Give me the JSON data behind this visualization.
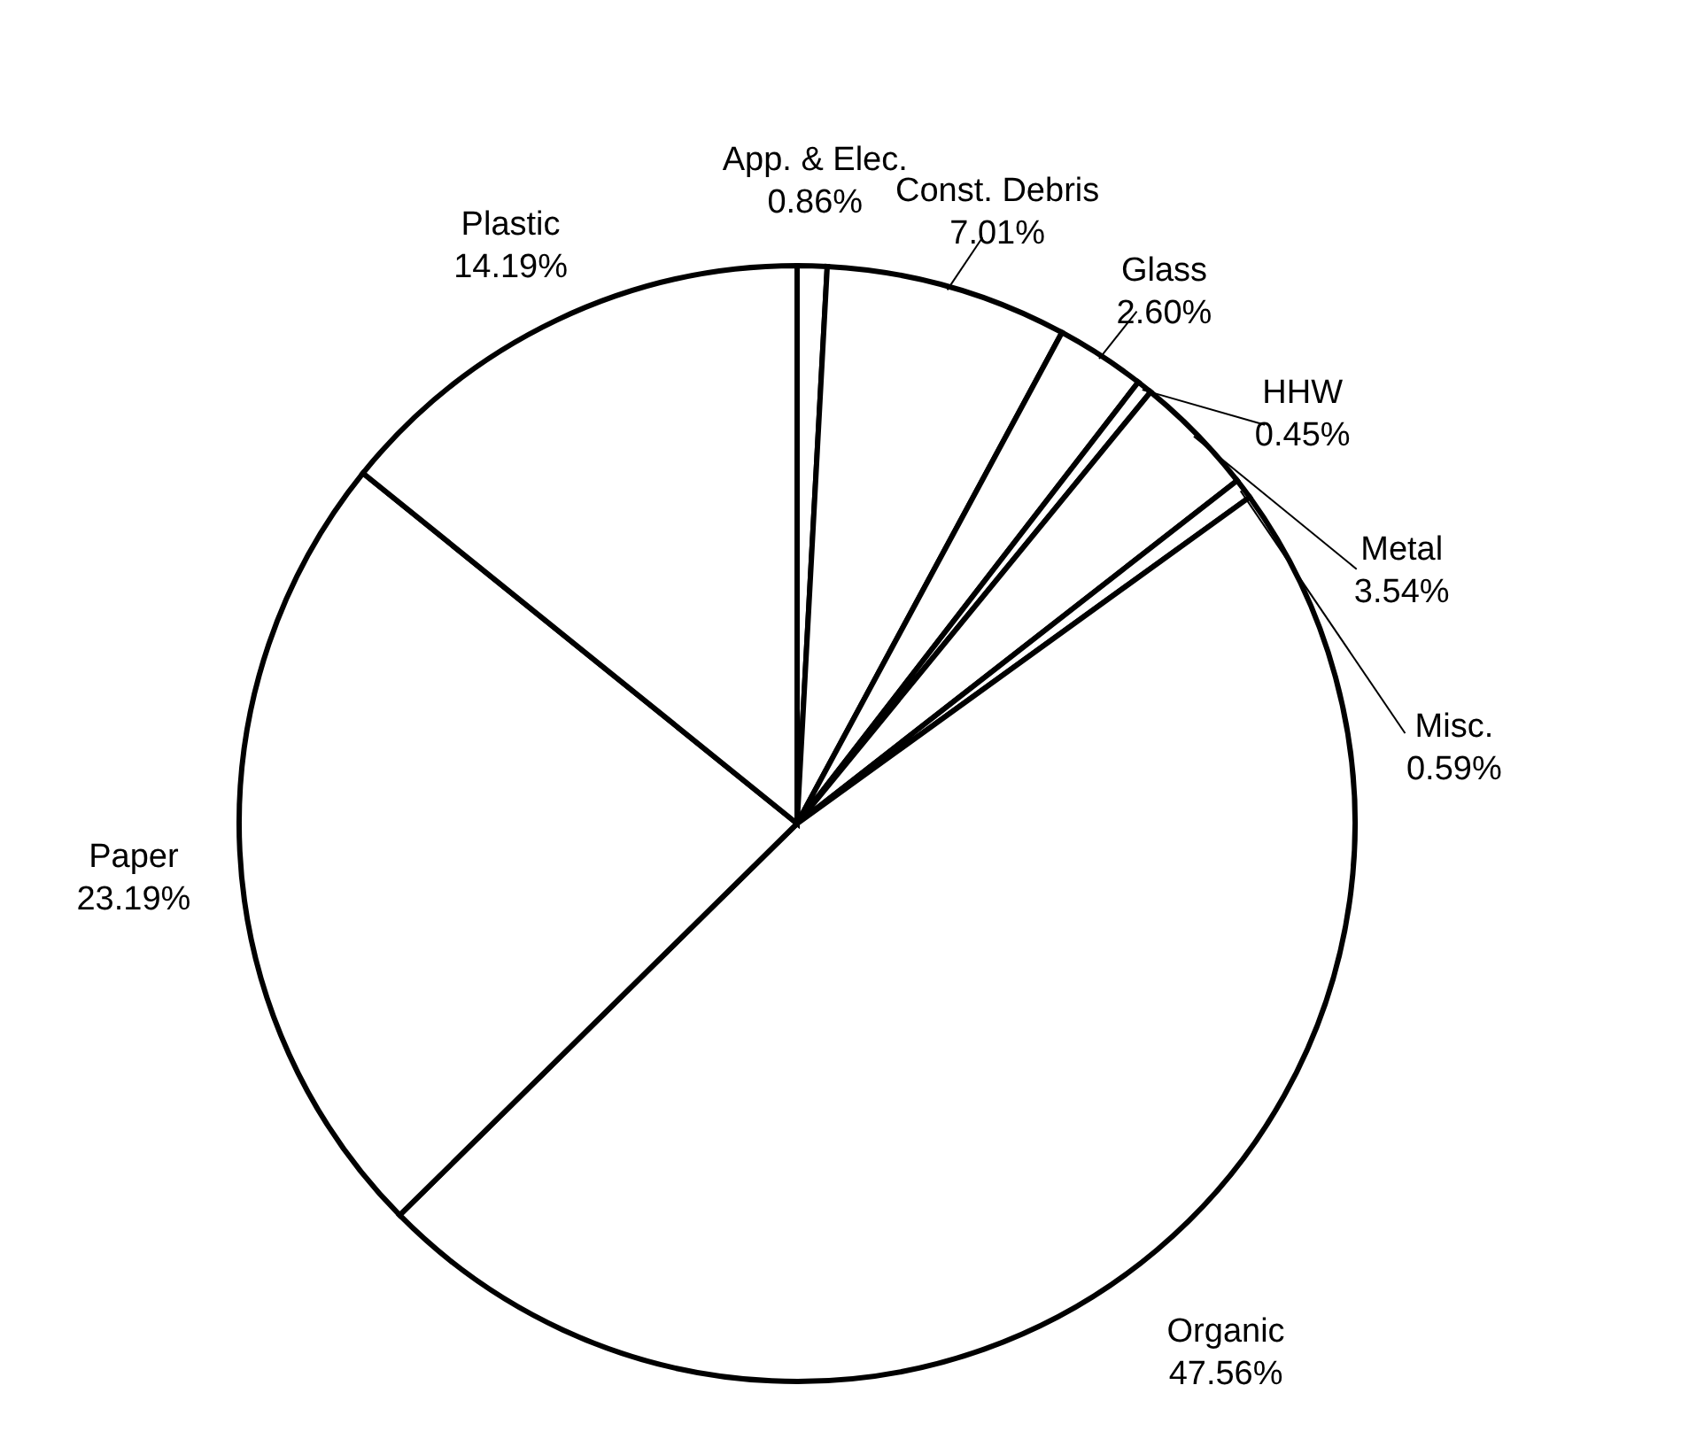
{
  "chart_data": {
    "type": "pie",
    "categories": [
      "App. & Elec.",
      "Const. Debris",
      "Glass",
      "HHW",
      "Metal",
      "Misc.",
      "Organic",
      "Paper",
      "Plastic"
    ],
    "values": [
      0.86,
      7.01,
      2.6,
      0.45,
      3.54,
      0.59,
      47.56,
      23.19,
      14.19
    ],
    "value_labels": [
      "0.86%",
      "7.01%",
      "2.60%",
      "0.45%",
      "3.54%",
      "0.59%",
      "47.56%",
      "23.19%",
      "14.19%"
    ],
    "colors": [
      "#ffffff",
      "#ffffff",
      "#ffffff",
      "#ffffff",
      "#ffffff",
      "#ffffff",
      "#ffffff",
      "#ffffff",
      "#ffffff"
    ]
  }
}
